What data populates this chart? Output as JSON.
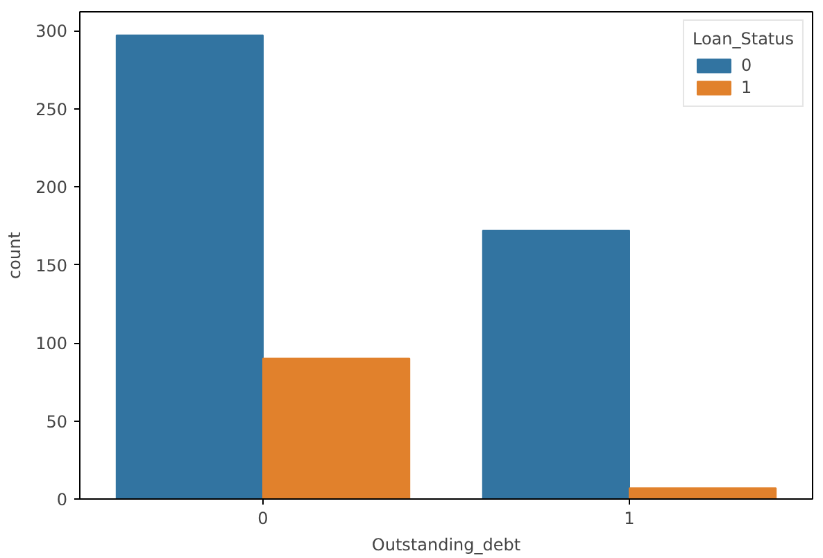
{
  "chart_data": {
    "type": "bar",
    "xlabel": "Outstanding_debt",
    "ylabel": "count",
    "legend_title": "Loan_Status",
    "categories": [
      "0",
      "1"
    ],
    "series": [
      {
        "name": "0",
        "color": "#3274a1",
        "values": [
          297,
          172
        ]
      },
      {
        "name": "1",
        "color": "#e1812c",
        "values": [
          90,
          7
        ]
      }
    ],
    "ylim": [
      0,
      312
    ],
    "yticks": [
      0,
      50,
      100,
      150,
      200,
      250,
      300
    ],
    "grid": false,
    "legend": "top right"
  }
}
